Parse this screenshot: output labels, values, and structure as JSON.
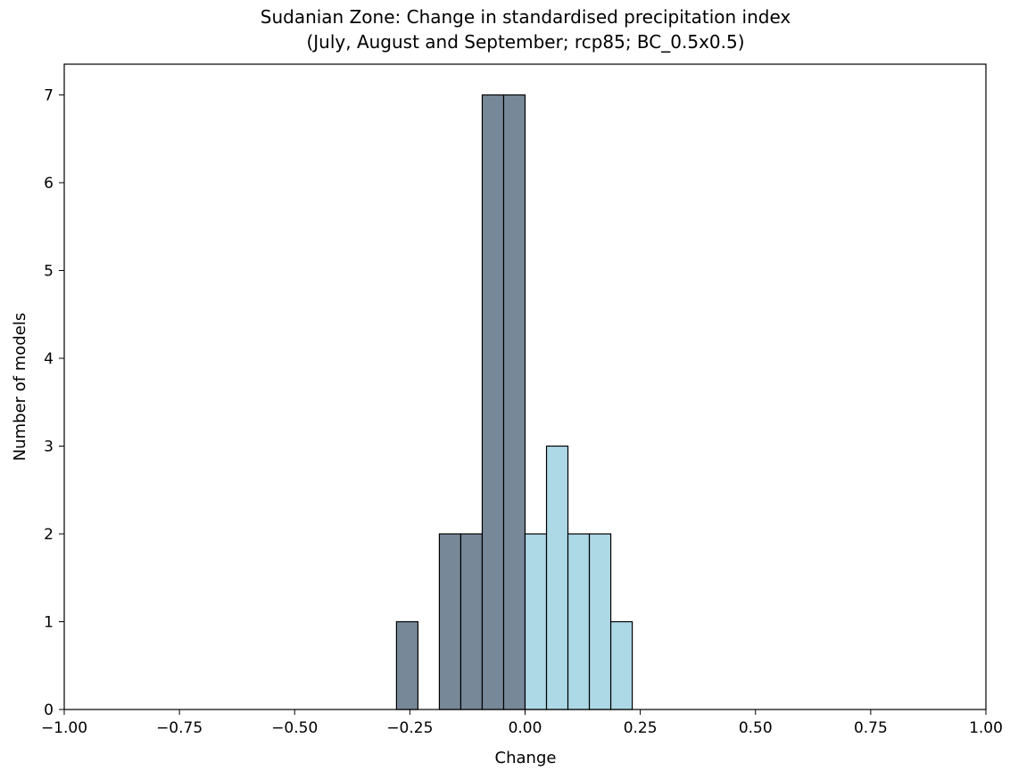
{
  "chart_data": {
    "type": "bar",
    "title": "Sudanian Zone: Change in standardised precipitation index",
    "subtitle": "(July, August and September; rcp85; BC_0.5x0.5)",
    "xlabel": "Change",
    "ylabel": "Number of models",
    "xlim": [
      -1.0,
      1.0
    ],
    "ylim": [
      0,
      7.35
    ],
    "xticks": [
      -1.0,
      -0.75,
      -0.5,
      -0.25,
      0.0,
      0.25,
      0.5,
      0.75,
      1.0
    ],
    "xtick_labels": [
      "−1.00",
      "−0.75",
      "−0.50",
      "−0.25",
      "0.00",
      "0.25",
      "0.50",
      "0.75",
      "1.00"
    ],
    "yticks": [
      0,
      1,
      2,
      3,
      4,
      5,
      6,
      7
    ],
    "ytick_labels": [
      "0",
      "1",
      "2",
      "3",
      "4",
      "5",
      "6",
      "7"
    ],
    "grid": false,
    "bin_width": 0.0465,
    "bars": [
      {
        "x0": -0.279,
        "value": 1,
        "group": "negative"
      },
      {
        "x0": -0.2325,
        "value": 0,
        "group": "negative"
      },
      {
        "x0": -0.186,
        "value": 2,
        "group": "negative"
      },
      {
        "x0": -0.1395,
        "value": 2,
        "group": "negative"
      },
      {
        "x0": -0.093,
        "value": 7,
        "group": "negative"
      },
      {
        "x0": -0.0465,
        "value": 7,
        "group": "negative"
      },
      {
        "x0": 0.0,
        "value": 2,
        "group": "positive"
      },
      {
        "x0": 0.0465,
        "value": 3,
        "group": "positive"
      },
      {
        "x0": 0.093,
        "value": 2,
        "group": "positive"
      },
      {
        "x0": 0.1395,
        "value": 2,
        "group": "positive"
      },
      {
        "x0": 0.186,
        "value": 1,
        "group": "positive"
      },
      {
        "x0": 0.2325,
        "value": 0,
        "group": "positive"
      }
    ],
    "colors": {
      "negative": "#778899",
      "positive": "#add8e6",
      "edge": "#000000"
    }
  }
}
